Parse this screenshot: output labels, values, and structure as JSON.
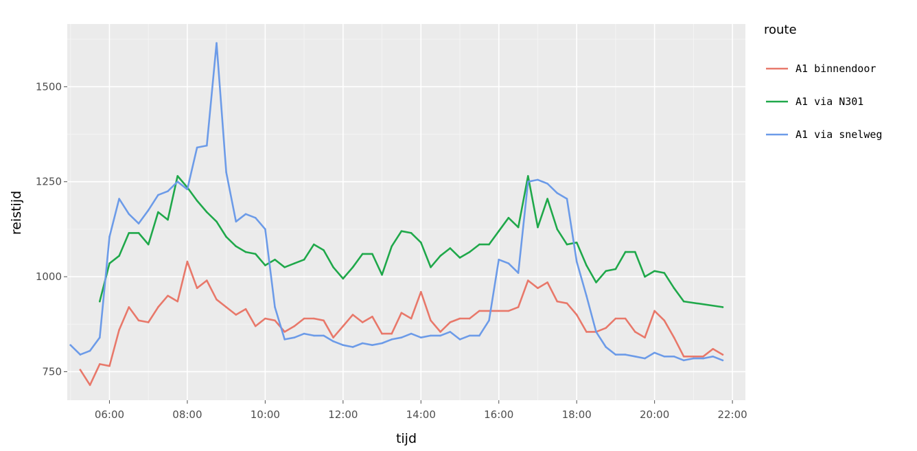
{
  "chart_data": {
    "type": "line",
    "xlabel": "tijd",
    "ylabel": "reistijd",
    "x_ticks": [
      "06:00",
      "08:00",
      "10:00",
      "12:00",
      "14:00",
      "16:00",
      "18:00",
      "20:00",
      "22:00"
    ],
    "y_ticks": [
      750,
      1000,
      1250,
      1500
    ],
    "xlim": [
      "04:55",
      "22:20"
    ],
    "ylim": [
      675,
      1665
    ],
    "grid": true,
    "legend_title": "route",
    "legend_position": "right",
    "series": [
      {
        "name": "A1 binnendoor",
        "color": "#e8786a",
        "x": [
          "05:15",
          "05:30",
          "05:45",
          "06:00",
          "06:15",
          "06:30",
          "06:45",
          "07:00",
          "07:15",
          "07:30",
          "07:45",
          "08:00",
          "08:15",
          "08:30",
          "08:45",
          "09:00",
          "09:15",
          "09:30",
          "09:45",
          "10:00",
          "10:15",
          "10:30",
          "10:45",
          "11:00",
          "11:15",
          "11:30",
          "11:45",
          "12:00",
          "12:15",
          "12:30",
          "12:45",
          "13:00",
          "13:15",
          "13:30",
          "13:45",
          "14:00",
          "14:15",
          "14:30",
          "14:45",
          "15:00",
          "15:15",
          "15:30",
          "15:45",
          "16:00",
          "16:15",
          "16:30",
          "16:45",
          "17:00",
          "17:15",
          "17:30",
          "17:45",
          "18:00",
          "18:15",
          "18:30",
          "18:45",
          "19:00",
          "19:15",
          "19:30",
          "19:45",
          "20:00",
          "20:15",
          "20:30",
          "20:45",
          "21:00",
          "21:15",
          "21:30",
          "21:45"
        ],
        "values": [
          755,
          715,
          770,
          765,
          860,
          920,
          885,
          880,
          920,
          950,
          935,
          1040,
          970,
          990,
          940,
          920,
          900,
          915,
          870,
          890,
          885,
          855,
          870,
          890,
          890,
          885,
          840,
          870,
          900,
          880,
          895,
          850,
          850,
          905,
          890,
          960,
          885,
          855,
          880,
          890,
          890,
          910,
          910,
          910,
          910,
          920,
          990,
          970,
          985,
          935,
          930,
          900,
          855,
          855,
          865,
          890,
          890,
          855,
          840,
          910,
          885,
          840,
          790,
          790,
          790,
          810,
          795
        ]
      },
      {
        "name": "A1 via N301",
        "color": "#1fa84a",
        "x": [
          "05:45",
          "06:00",
          "06:15",
          "06:30",
          "06:45",
          "07:00",
          "07:15",
          "07:30",
          "07:45",
          "08:00",
          "08:15",
          "08:30",
          "08:45",
          "09:00",
          "09:15",
          "09:30",
          "09:45",
          "10:00",
          "10:15",
          "10:30",
          "10:45",
          "11:00",
          "11:15",
          "11:30",
          "11:45",
          "12:00",
          "12:15",
          "12:30",
          "12:45",
          "13:00",
          "13:15",
          "13:30",
          "13:45",
          "14:00",
          "14:15",
          "14:30",
          "14:45",
          "15:00",
          "15:15",
          "15:30",
          "15:45",
          "16:00",
          "16:15",
          "16:30",
          "16:45",
          "17:00",
          "17:15",
          "17:30",
          "17:45",
          "18:00",
          "18:15",
          "18:30",
          "18:45",
          "19:00",
          "19:15",
          "19:30",
          "19:45",
          "20:00",
          "20:15",
          "20:30",
          "20:45",
          "21:45"
        ],
        "values": [
          935,
          1035,
          1055,
          1115,
          1115,
          1085,
          1170,
          1150,
          1265,
          1235,
          1200,
          1170,
          1145,
          1105,
          1080,
          1065,
          1060,
          1030,
          1045,
          1025,
          1035,
          1045,
          1085,
          1070,
          1025,
          995,
          1025,
          1060,
          1060,
          1005,
          1080,
          1120,
          1115,
          1090,
          1025,
          1055,
          1075,
          1050,
          1065,
          1085,
          1085,
          1120,
          1155,
          1130,
          1265,
          1130,
          1205,
          1125,
          1085,
          1090,
          1030,
          985,
          1015,
          1020,
          1065,
          1065,
          1000,
          1015,
          1010,
          970,
          935,
          920
        ]
      },
      {
        "name": "A1 via snelweg",
        "color": "#6c9be8",
        "x": [
          "05:00",
          "05:15",
          "05:30",
          "05:45",
          "06:00",
          "06:15",
          "06:30",
          "06:45",
          "07:00",
          "07:15",
          "07:30",
          "07:45",
          "08:00",
          "08:15",
          "08:30",
          "08:45",
          "09:00",
          "09:15",
          "09:30",
          "09:45",
          "10:00",
          "10:15",
          "10:30",
          "10:45",
          "11:00",
          "11:15",
          "11:30",
          "11:45",
          "12:00",
          "12:15",
          "12:30",
          "12:45",
          "13:00",
          "13:15",
          "13:30",
          "13:45",
          "14:00",
          "14:15",
          "14:30",
          "14:45",
          "15:00",
          "15:15",
          "15:30",
          "15:45",
          "16:00",
          "16:15",
          "16:30",
          "16:45",
          "17:00",
          "17:15",
          "17:30",
          "17:45",
          "18:00",
          "18:15",
          "18:30",
          "18:45",
          "19:00",
          "19:15",
          "19:30",
          "19:45",
          "20:00",
          "20:15",
          "20:30",
          "20:45",
          "21:00",
          "21:15",
          "21:30",
          "21:45"
        ],
        "values": [
          820,
          795,
          805,
          840,
          1105,
          1205,
          1165,
          1140,
          1175,
          1215,
          1225,
          1250,
          1230,
          1340,
          1345,
          1615,
          1275,
          1145,
          1165,
          1155,
          1125,
          920,
          835,
          840,
          850,
          845,
          845,
          830,
          820,
          815,
          825,
          820,
          825,
          835,
          840,
          850,
          840,
          845,
          845,
          855,
          835,
          845,
          845,
          885,
          1045,
          1035,
          1010,
          1250,
          1255,
          1245,
          1220,
          1205,
          1040,
          950,
          855,
          815,
          795,
          795,
          790,
          785,
          800,
          790,
          790,
          780,
          785,
          785,
          790,
          780
        ]
      }
    ]
  }
}
